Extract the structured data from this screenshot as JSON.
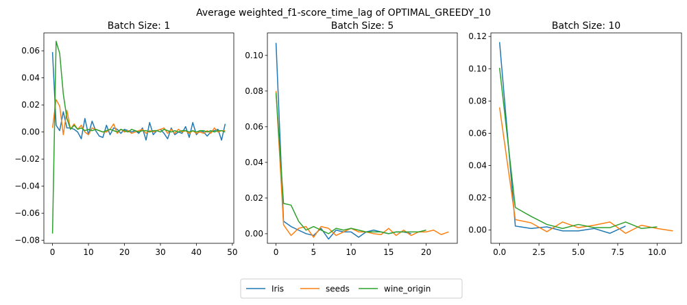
{
  "figure": {
    "suptitle": "Average weighted_f1-score_time_lag of OPTIMAL_GREEDY_10",
    "legend": [
      "Iris",
      "seeds",
      "wine_origin"
    ],
    "legend_placement": "bottom-center",
    "colors": {
      "Iris": "#1f77b4",
      "seeds": "#ff7f0e",
      "wine_origin": "#2ca02c"
    }
  },
  "chart_data": [
    {
      "type": "line",
      "title": "Batch Size: 1",
      "xlim": [
        -2.4,
        50.4
      ],
      "ylim": [
        -0.0822,
        0.0732
      ],
      "xticks": [
        0,
        10,
        20,
        30,
        40,
        50
      ],
      "xtick_labels": [
        "0",
        "10",
        "20",
        "30",
        "40",
        "50"
      ],
      "yticks": [
        -0.08,
        -0.06,
        -0.04,
        -0.02,
        0.0,
        0.02,
        0.04,
        0.06
      ],
      "ytick_labels": [
        "−0.08",
        "−0.06",
        "−0.04",
        "−0.02",
        "0.00",
        "0.02",
        "0.04",
        "0.06"
      ],
      "series": [
        {
          "name": "Iris",
          "x": [
            0,
            1,
            2,
            3,
            4,
            5,
            6,
            7,
            8,
            9,
            10,
            11,
            12,
            13,
            14,
            15,
            16,
            17,
            18,
            19,
            20,
            21,
            22,
            23,
            24,
            25,
            26,
            27,
            28,
            29,
            30,
            31,
            32,
            33,
            34,
            35,
            36,
            37,
            38,
            39,
            40,
            41,
            42,
            43,
            44,
            45,
            46,
            47,
            48
          ],
          "y": [
            0.059,
            0.005,
            0.001,
            0.015,
            0.003,
            0.003,
            0.002,
            0.0,
            -0.005,
            0.01,
            -0.002,
            0.008,
            0.001,
            -0.003,
            -0.004,
            0.005,
            -0.002,
            0.003,
            0.002,
            -0.001,
            0.002,
            0.001,
            0.0,
            0.001,
            -0.001,
            0.003,
            -0.006,
            0.007,
            -0.002,
            0.001,
            0.002,
            -0.001,
            -0.005,
            0.003,
            -0.002,
            0.0,
            -0.001,
            0.004,
            -0.004,
            0.007,
            -0.002,
            0.001,
            0.0,
            -0.003,
            0.0,
            0.001,
            0.002,
            -0.006,
            0.006
          ]
        },
        {
          "name": "seeds",
          "x": [
            0,
            1,
            2,
            3,
            4,
            5,
            6,
            7,
            8,
            9,
            10,
            11,
            12,
            13,
            14,
            15,
            16,
            17,
            18,
            19,
            20,
            21,
            22,
            23,
            24,
            25,
            26,
            27,
            28,
            29,
            30,
            31,
            32,
            33,
            34,
            35,
            36,
            37,
            38,
            39,
            40,
            41,
            42,
            43,
            44,
            45,
            46,
            47,
            48
          ],
          "y": [
            0.003,
            0.024,
            0.019,
            -0.002,
            0.016,
            0.002,
            0.006,
            0.002,
            0.005,
            0.0,
            -0.002,
            0.003,
            0.002,
            0.001,
            0.0,
            0.0,
            0.002,
            0.006,
            -0.001,
            0.002,
            0.0,
            0.001,
            -0.001,
            0.0,
            0.001,
            0.002,
            -0.001,
            0.001,
            0.0,
            0.001,
            0.002,
            0.003,
            -0.001,
            0.002,
            -0.001,
            0.002,
            0.0,
            0.001,
            -0.001,
            0.001,
            -0.001,
            0.0,
            -0.001,
            0.001,
            -0.001,
            0.003,
            0.0,
            0.001,
            0.001
          ]
        },
        {
          "name": "wine_origin",
          "x": [
            0,
            1,
            2,
            3,
            4,
            5,
            6,
            7,
            8,
            9,
            10,
            11,
            12,
            13,
            14,
            15,
            16,
            17,
            18,
            19,
            20,
            21,
            22,
            23,
            24,
            25,
            26,
            27,
            28,
            29,
            30,
            31,
            32,
            33,
            34,
            35,
            36,
            37,
            38,
            39,
            40,
            41,
            42,
            43,
            44,
            45,
            46,
            47,
            48
          ],
          "y": [
            -0.075,
            0.067,
            0.058,
            0.028,
            0.01,
            0.002,
            0.005,
            0.002,
            0.003,
            0.001,
            0.002,
            0.001,
            0.002,
            0.001,
            0.0,
            0.001,
            0.002,
            0.001,
            0.0,
            0.002,
            0.001,
            0.0,
            0.002,
            0.001,
            0.0,
            0.001,
            0.001,
            0.0,
            0.001,
            0.001,
            0.0,
            0.002,
            0.001,
            0.0,
            0.001,
            0.0,
            0.001,
            0.001,
            0.0,
            0.001,
            0.0,
            0.001,
            0.001,
            0.0,
            0.001,
            0.0,
            0.001,
            0.001,
            0.0
          ]
        }
      ]
    },
    {
      "type": "line",
      "title": "Batch Size: 5",
      "xlim": [
        -1.15,
        24.15
      ],
      "ylim": [
        -0.0054,
        0.1126
      ],
      "xticks": [
        0,
        5,
        10,
        15,
        20
      ],
      "xtick_labels": [
        "0",
        "5",
        "10",
        "15",
        "20"
      ],
      "yticks": [
        0.0,
        0.02,
        0.04,
        0.06,
        0.08,
        0.1
      ],
      "ytick_labels": [
        "0.00",
        "0.02",
        "0.04",
        "0.06",
        "0.08",
        "0.10"
      ],
      "series": [
        {
          "name": "Iris",
          "x": [
            0,
            1,
            2,
            3,
            4,
            5,
            6,
            7,
            8,
            9,
            10,
            11,
            12,
            13,
            14,
            15,
            16,
            17,
            18
          ],
          "y": [
            0.107,
            0.007,
            0.004,
            0.002,
            0.0,
            -0.001,
            0.003,
            -0.003,
            0.002,
            0.001,
            0.001,
            -0.002,
            0.001,
            0.002,
            0.001,
            0.0,
            0.001,
            0.001,
            0.0
          ]
        },
        {
          "name": "seeds",
          "x": [
            0,
            1,
            2,
            3,
            4,
            5,
            6,
            7,
            8,
            9,
            10,
            11,
            12,
            13,
            14,
            15,
            16,
            17,
            18,
            19,
            20,
            21,
            22,
            23
          ],
          "y": [
            0.08,
            0.005,
            -0.001,
            0.003,
            0.004,
            -0.002,
            0.004,
            0.003,
            -0.001,
            0.001,
            0.003,
            0.001,
            0.001,
            0.0,
            -0.0005,
            0.003,
            -0.001,
            0.002,
            -0.001,
            0.001,
            0.001,
            0.002,
            -0.0005,
            0.001
          ]
        },
        {
          "name": "wine_origin",
          "x": [
            0,
            1,
            2,
            3,
            4,
            5,
            6,
            7,
            8,
            9,
            10,
            11,
            12,
            13,
            14,
            15,
            16,
            17,
            18,
            19,
            20
          ],
          "y": [
            0.079,
            0.017,
            0.016,
            0.007,
            0.002,
            0.004,
            0.002,
            0.0,
            0.003,
            0.002,
            0.003,
            0.002,
            0.001,
            0.001,
            0.001,
            0.0,
            0.001,
            0.001,
            0.001,
            0.001,
            0.002
          ]
        }
      ]
    },
    {
      "type": "line",
      "title": "Batch Size: 10",
      "xlim": [
        -0.55,
        11.55
      ],
      "ylim": [
        -0.0082,
        0.1222
      ],
      "xticks": [
        0.0,
        2.5,
        5.0,
        7.5,
        10.0
      ],
      "xtick_labels": [
        "0.0",
        "2.5",
        "5.0",
        "7.5",
        "10.0"
      ],
      "yticks": [
        0.0,
        0.02,
        0.04,
        0.06,
        0.08,
        0.1,
        0.12
      ],
      "ytick_labels": [
        "0.00",
        "0.02",
        "0.04",
        "0.06",
        "0.08",
        "0.10",
        "0.12"
      ],
      "series": [
        {
          "name": "Iris",
          "x": [
            0,
            1,
            2,
            3,
            4,
            5,
            6,
            7,
            8
          ],
          "y": [
            0.1165,
            0.0025,
            0.001,
            0.002,
            -0.0005,
            -0.0005,
            0.001,
            -0.002,
            0.0025
          ]
        },
        {
          "name": "seeds",
          "x": [
            0,
            1,
            2,
            3,
            4,
            5,
            6,
            7,
            8,
            9,
            10,
            11
          ],
          "y": [
            0.076,
            0.0065,
            0.0045,
            -0.001,
            0.005,
            0.0015,
            0.003,
            0.005,
            -0.002,
            0.003,
            0.001,
            -0.0005
          ]
        },
        {
          "name": "wine_origin",
          "x": [
            0,
            1,
            2,
            3,
            4,
            5,
            6,
            7,
            8,
            9,
            10
          ],
          "y": [
            0.1005,
            0.014,
            0.0085,
            0.0035,
            0.001,
            0.0035,
            0.0015,
            0.0015,
            0.005,
            0.001,
            0.002
          ]
        }
      ]
    }
  ]
}
